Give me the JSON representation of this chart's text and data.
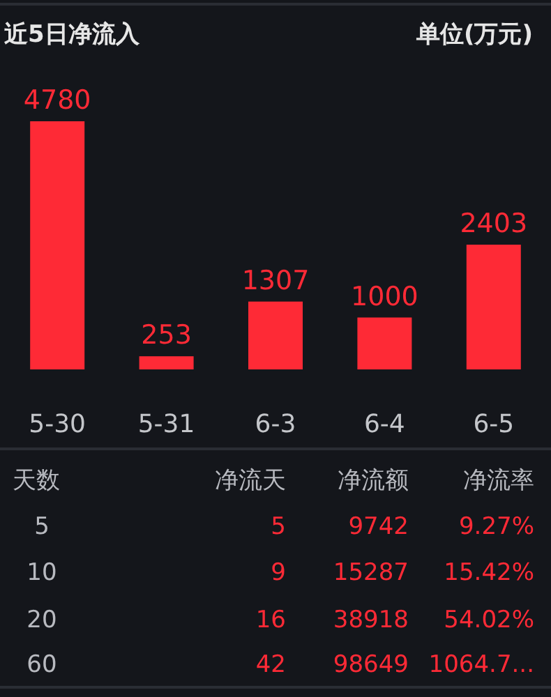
{
  "chart_data": [
    {
      "type": "bar",
      "title": "近5日净流入",
      "subtitle": "单位(万元)",
      "categories": [
        "5-30",
        "5-31",
        "6-3",
        "6-4",
        "6-5"
      ],
      "values": [
        4780,
        253,
        1307,
        1000,
        2403
      ],
      "color": "#fe2a36",
      "data_labels": true
    },
    {
      "type": "other",
      "annotations": [
        "天数",
        "净流天",
        "净流额",
        "净流率",
        "5",
        "5",
        "9742",
        "9.27%",
        "10",
        "9",
        "15287",
        "15.42%",
        "20",
        "16",
        "38918",
        "54.02%",
        "60",
        "42",
        "98649",
        "1064.7..."
      ]
    }
  ]
}
